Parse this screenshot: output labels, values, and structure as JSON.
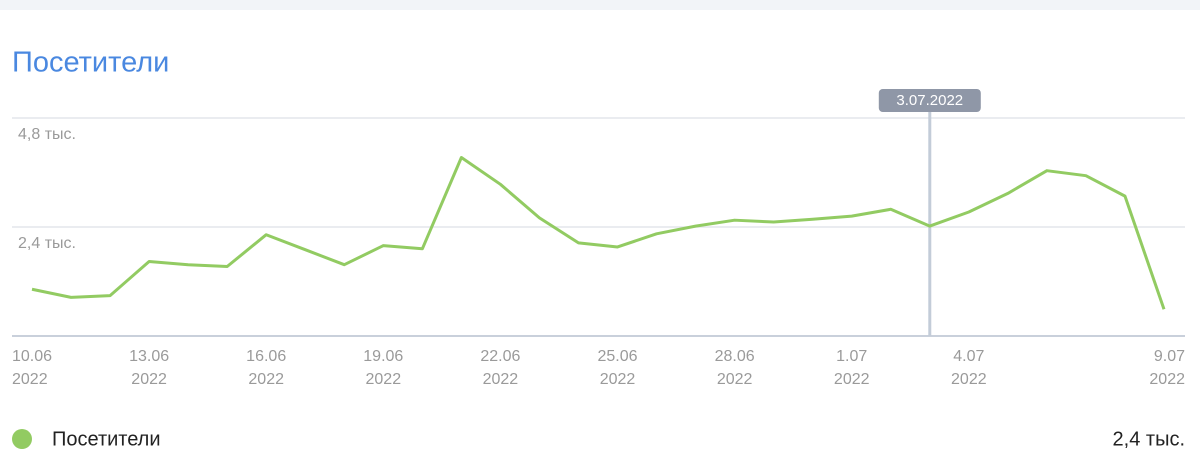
{
  "chart_data": {
    "type": "line",
    "title": "Посетители",
    "categories": [
      "10.06",
      null,
      null,
      "13.06",
      null,
      null,
      "16.06",
      null,
      null,
      "19.06",
      null,
      null,
      "22.06",
      null,
      null,
      "25.06",
      null,
      null,
      "28.06",
      null,
      null,
      "1.07",
      null,
      null,
      "4.07",
      null,
      null,
      null,
      null,
      "9.07"
    ],
    "category_sublabel": "2022",
    "series": [
      {
        "name": "Посетители",
        "color": "#92cb62",
        "values": [
          1030,
          850,
          890,
          1640,
          1570,
          1530,
          2230,
          1900,
          1570,
          1990,
          1920,
          3930,
          3340,
          2600,
          2050,
          1960,
          2250,
          2420,
          2550,
          2510,
          2570,
          2640,
          2790,
          2420,
          2730,
          3140,
          3640,
          3530,
          3080,
          590
        ],
        "value_labels": [
          null,
          null,
          null,
          null,
          null,
          null,
          null,
          null,
          null,
          null,
          null,
          null,
          null,
          null,
          null,
          null,
          null,
          null,
          null,
          null,
          null,
          null,
          null,
          "2,4 тыс.",
          null,
          null,
          null,
          null,
          null,
          null
        ]
      }
    ],
    "ylim": [
      0,
      4800
    ],
    "yticks": [
      {
        "value": 2400,
        "label": "2,4 тыс."
      },
      {
        "value": 4800,
        "label": "4,8 тыс."
      }
    ],
    "grid": true,
    "highlight": {
      "index": 23,
      "label": "3.07.2022"
    }
  }
}
